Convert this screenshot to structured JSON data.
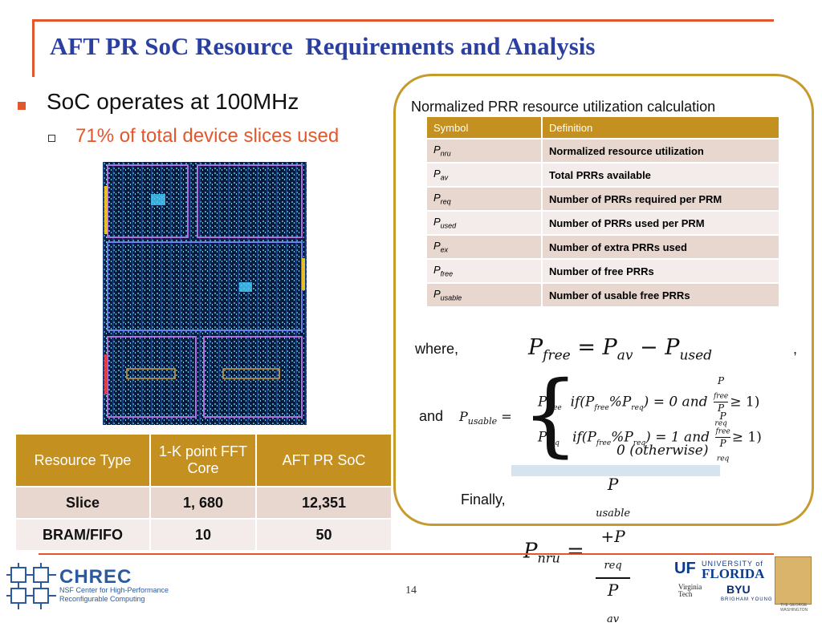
{
  "title": "AFT PR SoC Resource  Requirements and Analysis",
  "bullets": {
    "level1": "SoC operates at 100MHz",
    "level2": "71% of total device slices used"
  },
  "resource_table": {
    "headers": [
      "Resource Type",
      "1-K point FFT Core",
      "AFT PR SoC"
    ],
    "rows": [
      [
        "Slice",
        "1, 680",
        "12,351"
      ],
      [
        "BRAM/FIFO",
        "10",
        "50"
      ]
    ]
  },
  "analysis": {
    "heading": "Normalized PRR resource utilization calculation",
    "symbol_table": {
      "headers": [
        "Symbol",
        "Definition"
      ],
      "rows": [
        {
          "symbol": "P",
          "sub": "nru",
          "definition": "Normalized resource utilization"
        },
        {
          "symbol": "P",
          "sub": "av",
          "definition": "Total PRRs available"
        },
        {
          "symbol": "P",
          "sub": "req",
          "definition": "Number of PRRs required per PRM"
        },
        {
          "symbol": "P",
          "sub": "used",
          "definition": "Number of PRRs used per PRM"
        },
        {
          "symbol": "P",
          "sub": "ex",
          "definition": "Number of extra PRRs used"
        },
        {
          "symbol": "P",
          "sub": "free",
          "definition": "Number of free PRRs"
        },
        {
          "symbol": "P",
          "sub": "usable",
          "definition": "Number of usable free PRRs"
        }
      ]
    },
    "where_label": "where,",
    "comma": ",",
    "and_label": "and",
    "finally_label": "Finally,",
    "eq_free": {
      "lhs": "P",
      "lhs_sub": "free",
      "op": "=",
      "a": "P",
      "a_sub": "av",
      "minus": "−",
      "b": "P",
      "b_sub": "used"
    },
    "eq_usable": {
      "lhs": "P",
      "lhs_sub": "usable",
      "op": "=",
      "case1": {
        "val": "P",
        "val_sub": "free",
        "cond": "if(P",
        "cond_sub1": "free",
        "mod": "%P",
        "cond_sub2": "req",
        "tail": ") = 0 and",
        "frac_num": "P",
        "frac_num_sub": "free",
        "frac_den": "P",
        "frac_den_sub": "req",
        "ge": "≥ 1)"
      },
      "case2": {
        "val": "P",
        "val_sub": "req",
        "cond": "if(P",
        "cond_sub1": "free",
        "mod": "%P",
        "cond_sub2": "req",
        "tail": ") = 1 and",
        "frac_num": "P",
        "frac_num_sub": "free",
        "frac_den": "P",
        "frac_den_sub": "req",
        "ge": "≥ 1)"
      },
      "case3": "0 (otherwise)"
    },
    "eq_nru": {
      "lhs": "P",
      "lhs_sub": "nru",
      "op": "=",
      "num": "P",
      "num_sub1": "usable",
      "plus": "+P",
      "num_sub2": "req",
      "den": "P",
      "den_sub": "av"
    }
  },
  "footer": {
    "page_number": "14",
    "chrec_name": "CHREC",
    "chrec_line1": "NSF Center for High-Performance",
    "chrec_line2": "Reconfigurable Computing",
    "uf_mark": "UF",
    "uf_university": "UNIVERSITY of",
    "uf_florida": "FLORIDA",
    "vt_line1": "Virginia",
    "vt_line2": "Tech",
    "byu": "BYU",
    "byu_sub": "BRIGHAM YOUNG",
    "gwu_line1": "THE GEORGE",
    "gwu_line2": "WASHINGTON"
  },
  "colors": {
    "accent": "#e2572b",
    "title": "#2a3fa0",
    "table_header": "#c4901f",
    "frame": "#c79a2c"
  }
}
